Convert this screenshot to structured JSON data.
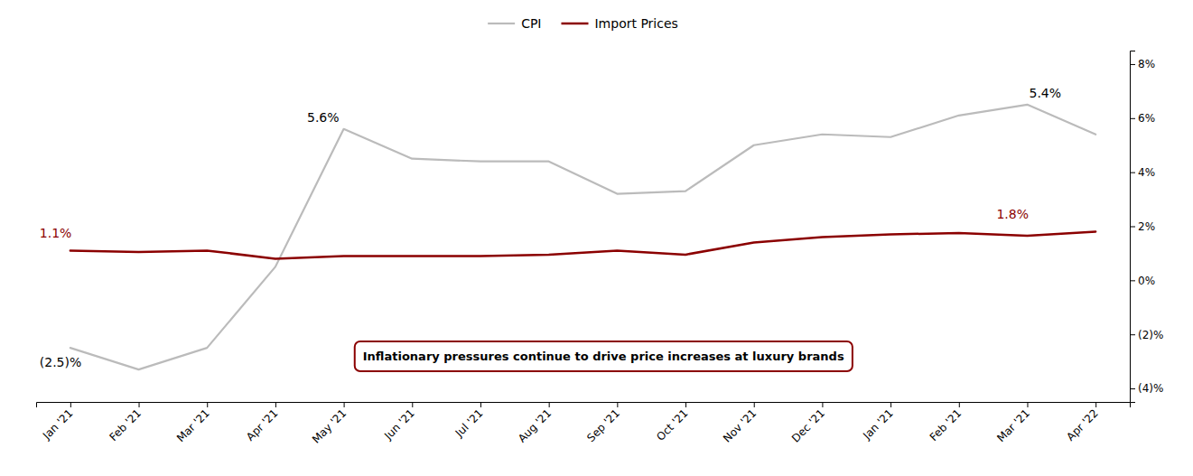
{
  "chart_data": {
    "type": "line",
    "categories": [
      "Jan '21",
      "Feb '21",
      "Mar '21",
      "Apr '21",
      "May '21",
      "Jun '21",
      "Jul '21",
      "Aug '21",
      "Sep '21",
      "Oct '21",
      "Nov '21",
      "Dec '21",
      "Jan '21",
      "Feb '21",
      "Mar '21",
      "Apr '22"
    ],
    "series": [
      {
        "name": "CPI",
        "color": "#bbbbbb",
        "values": [
          -2.5,
          -3.3,
          -2.5,
          0.5,
          5.6,
          4.5,
          4.4,
          4.4,
          3.2,
          3.3,
          5.0,
          5.4,
          5.3,
          6.1,
          6.5,
          5.4
        ]
      },
      {
        "name": "Import Prices",
        "color": "#8b0000",
        "values": [
          1.1,
          1.05,
          1.1,
          0.8,
          0.9,
          0.9,
          0.9,
          0.95,
          1.1,
          0.95,
          1.4,
          1.6,
          1.7,
          1.75,
          1.65,
          1.8
        ]
      }
    ],
    "ylim": [
      -4.5,
      8.5
    ],
    "yticks": [
      {
        "value": -4,
        "label": "(4)%"
      },
      {
        "value": -2,
        "label": "(2)%"
      },
      {
        "value": 0,
        "label": "0%"
      },
      {
        "value": 2,
        "label": "2%"
      },
      {
        "value": 4,
        "label": "4%"
      },
      {
        "value": 6,
        "label": "6%"
      },
      {
        "value": 8,
        "label": "8%"
      }
    ],
    "grid": false,
    "legend": "top",
    "annotations": [
      {
        "text": "5.6%",
        "color": "#000000"
      },
      {
        "text": "5.4%",
        "color": "#000000"
      },
      {
        "text": "(2.5)%",
        "color": "#000000"
      },
      {
        "text": "1.1%",
        "color": "#8b0000"
      },
      {
        "text": "1.8%",
        "color": "#8b0000"
      },
      {
        "text": "Inflationary pressures continue to drive price increases at luxury brands"
      }
    ]
  }
}
